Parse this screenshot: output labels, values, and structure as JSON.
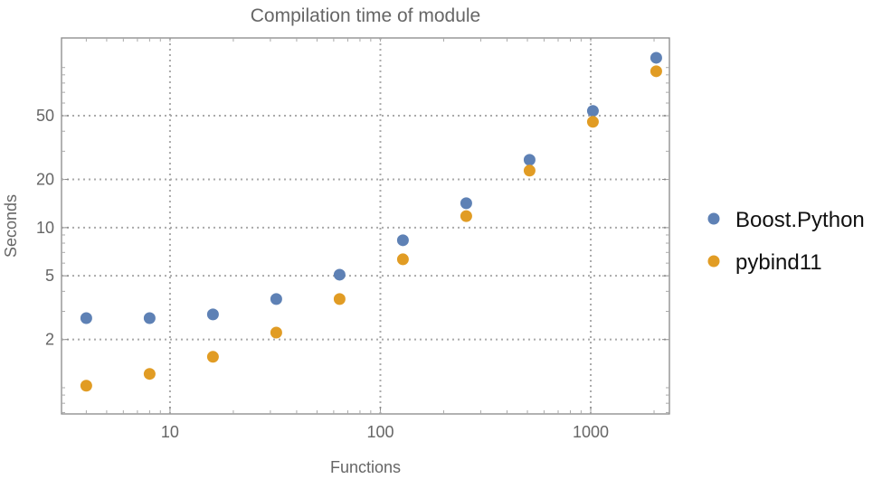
{
  "chart_data": {
    "type": "scatter",
    "title": "Compilation time of module",
    "xlabel": "Functions",
    "ylabel": "Seconds",
    "xscale": "log",
    "yscale": "log",
    "xlim": [
      3.05,
      2366
    ],
    "ylim": [
      0.686,
      153
    ],
    "xticks": [
      10,
      100,
      1000
    ],
    "xtick_labels": [
      "10",
      "100",
      "1000"
    ],
    "yticks": [
      2,
      5,
      10,
      20,
      50
    ],
    "ytick_labels": [
      "2",
      "5",
      "10",
      "20",
      "50"
    ],
    "grid": true,
    "grid_style": "dotted",
    "legend_placement": "right",
    "x": [
      4,
      8,
      16,
      32,
      64,
      128,
      256,
      512,
      1024,
      2048
    ],
    "series": [
      {
        "name": "Boost.Python",
        "color": "#5E81B5",
        "values": [
          2.72,
          2.72,
          2.87,
          3.58,
          5.08,
          8.34,
          14.2,
          26.5,
          53.6,
          115
        ]
      },
      {
        "name": "pybind11",
        "color": "#E19C24",
        "values": [
          1.03,
          1.22,
          1.56,
          2.21,
          3.58,
          6.34,
          11.8,
          22.7,
          45.8,
          94.8
        ]
      }
    ]
  }
}
